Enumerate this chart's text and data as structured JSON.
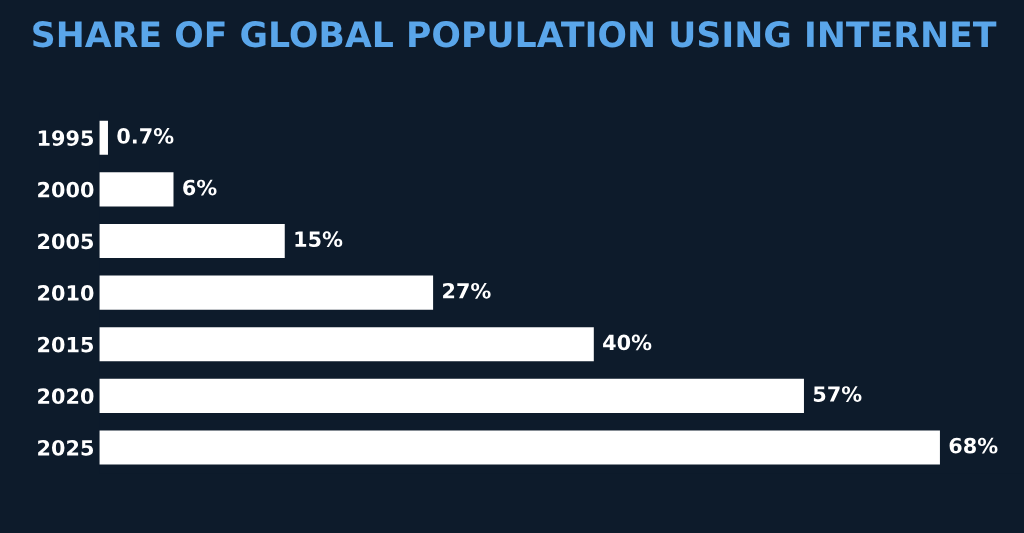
{
  "chart_data": {
    "type": "bar",
    "orientation": "horizontal",
    "title": "SHARE OF GLOBAL POPULATION USING INTERNET",
    "categories": [
      "1995",
      "2000",
      "2005",
      "2010",
      "2015",
      "2020",
      "2025"
    ],
    "values": [
      0.7,
      6,
      15,
      27,
      40,
      57,
      68
    ],
    "value_labels": [
      "0.7%",
      "6%",
      "15%",
      "27%",
      "40%",
      "57%",
      "68%"
    ],
    "color": "#ffffff",
    "tick_labels": "y",
    "grid": false,
    "legend": false
  }
}
